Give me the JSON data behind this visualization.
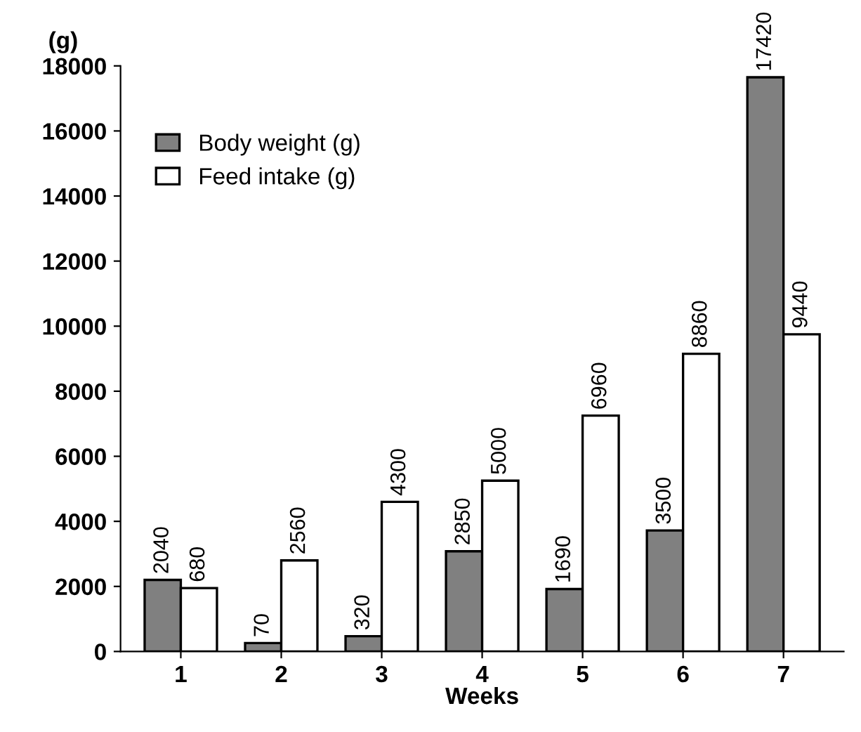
{
  "chart_data": {
    "type": "bar",
    "ylabel": "(g)",
    "xlabel": "Weeks",
    "categories": [
      "1",
      "2",
      "3",
      "4",
      "5",
      "6",
      "7"
    ],
    "series": [
      {
        "name": "Body weight (g)",
        "color": "#808080",
        "values": [
          2200,
          260,
          470,
          3080,
          1920,
          3720,
          17650
        ]
      },
      {
        "name": "Feed intake (g)",
        "color": "#ffffff",
        "values": [
          1950,
          2800,
          4600,
          5250,
          7250,
          9150,
          9750
        ]
      }
    ],
    "annotations": [
      {
        "text": "2040",
        "x": "1",
        "y": 2200
      },
      {
        "text": "70",
        "x": "2",
        "y": 260
      },
      {
        "text": "320",
        "x": "3",
        "y": 470
      },
      {
        "text": "2850",
        "x": "4",
        "y": 3080
      },
      {
        "text": "1690",
        "x": "5",
        "y": 1920
      },
      {
        "text": "3500",
        "x": "6",
        "y": 3720
      },
      {
        "text": "17420",
        "x": "7",
        "y": 17650
      },
      {
        "text": "680",
        "x": "1",
        "y": 1950
      },
      {
        "text": "2560",
        "x": "2",
        "y": 2800
      },
      {
        "text": "4300",
        "x": "3",
        "y": 4600
      },
      {
        "text": "5000",
        "x": "4",
        "y": 5250
      },
      {
        "text": "6960",
        "x": "5",
        "y": 7250
      },
      {
        "text": "8860",
        "x": "6",
        "y": 9150
      },
      {
        "text": "9440",
        "x": "7",
        "y": 9750
      }
    ],
    "ylim": [
      0,
      18000
    ],
    "yticks": [
      0,
      2000,
      4000,
      6000,
      8000,
      10000,
      12000,
      14000,
      16000,
      18000
    ],
    "grid": false,
    "legend": "top left"
  }
}
